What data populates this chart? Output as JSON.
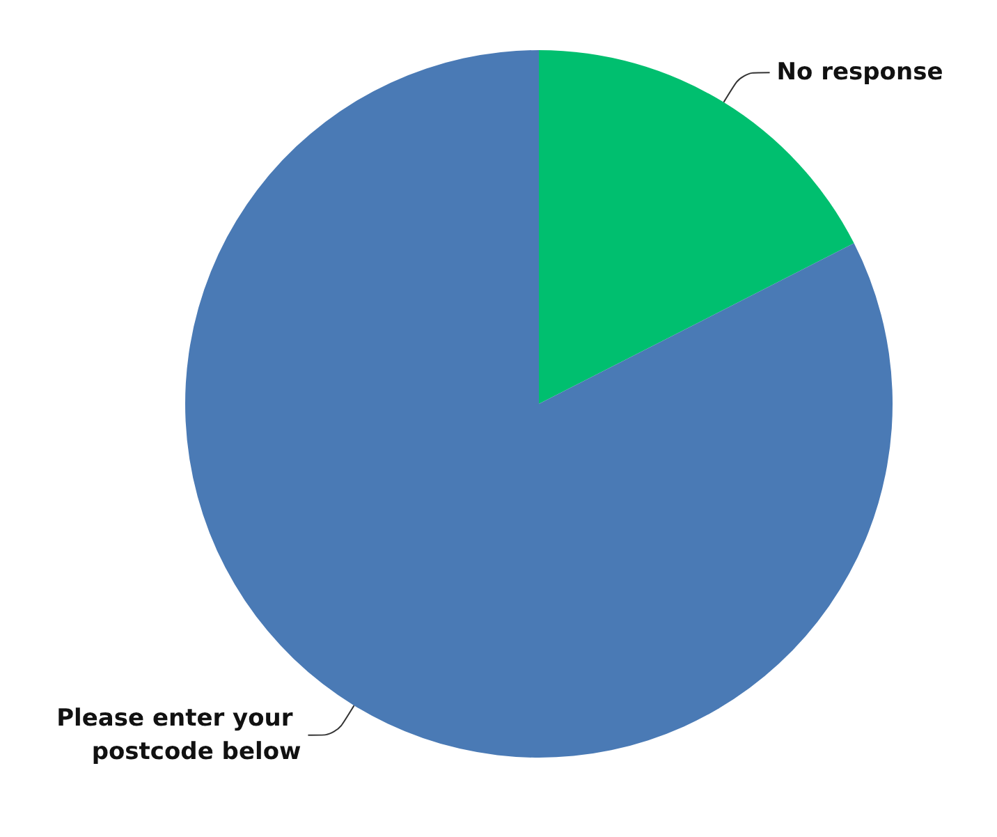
{
  "chart_data": {
    "type": "pie",
    "categories": [
      "No response",
      "Please enter your postcode below"
    ],
    "values": [
      17.5,
      82.5
    ],
    "colors": [
      "#00bf6f",
      "#4a7ab5"
    ],
    "legend": false
  }
}
